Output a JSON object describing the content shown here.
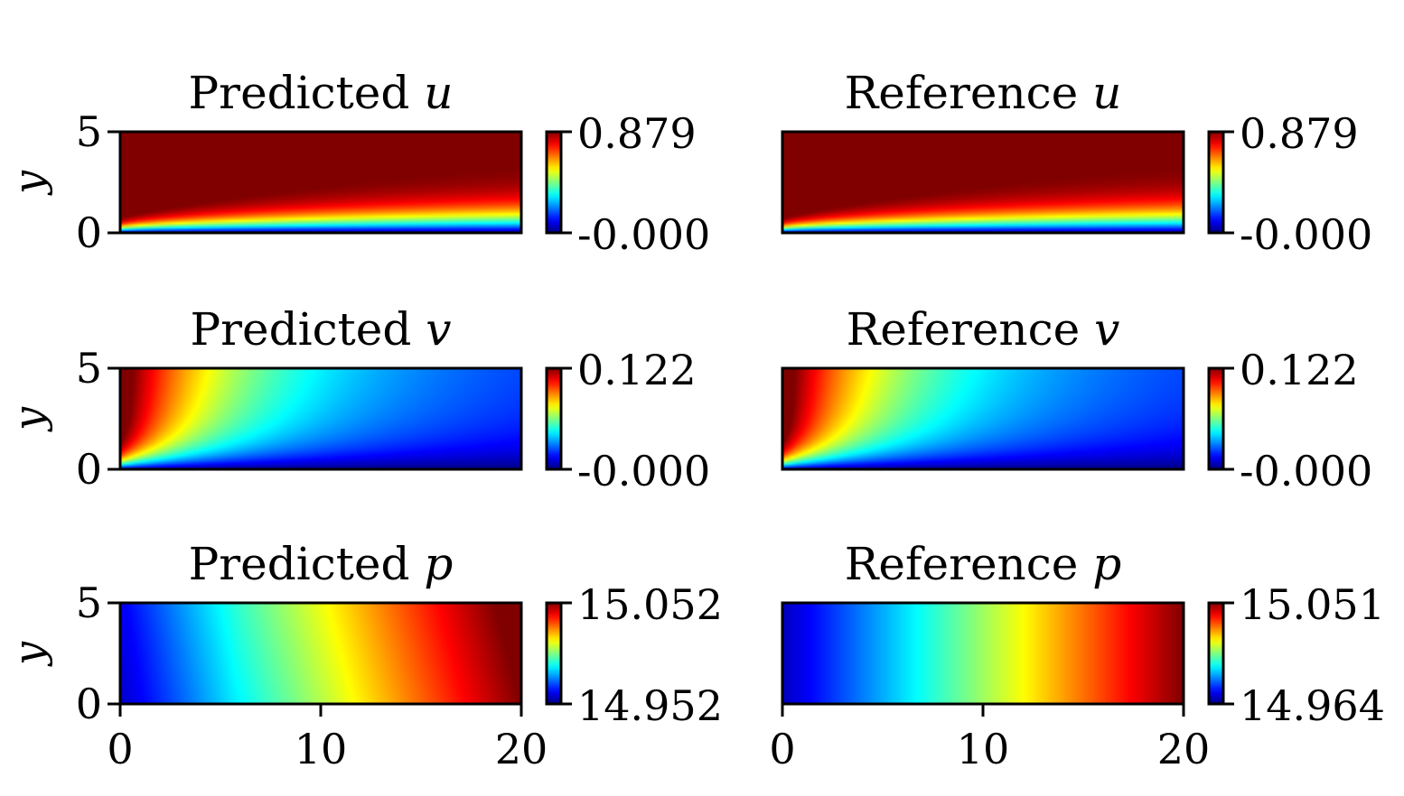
{
  "chart_data": [
    {
      "type": "heatmap",
      "title": "Predicted",
      "variable": "u",
      "ylabel": "y",
      "xlim": [
        0,
        20
      ],
      "ylim": [
        0,
        5
      ],
      "xticks": [
        "0",
        "10",
        "20"
      ],
      "yticks": [
        "0",
        "5"
      ],
      "colormap": "jet",
      "field": "boundary-layer",
      "colorbar": {
        "min_label": "-0.000",
        "max_label": "0.879",
        "min": -0.0,
        "max": 0.879
      }
    },
    {
      "type": "heatmap",
      "title": "Reference",
      "variable": "u",
      "ylabel": "",
      "xlim": [
        0,
        20
      ],
      "ylim": [
        0,
        5
      ],
      "xticks": [],
      "yticks": [],
      "colormap": "jet",
      "field": "boundary-layer",
      "colorbar": {
        "min_label": "-0.000",
        "max_label": "0.879",
        "min": -0.0,
        "max": 0.879
      }
    },
    {
      "type": "heatmap",
      "title": "Predicted",
      "variable": "v",
      "ylabel": "y",
      "xlim": [
        0,
        20
      ],
      "ylim": [
        0,
        5
      ],
      "xticks": [
        "0",
        "10",
        "20"
      ],
      "yticks": [
        "0",
        "5"
      ],
      "colormap": "jet",
      "field": "vertical-velocity",
      "colorbar": {
        "min_label": "-0.000",
        "max_label": "0.122",
        "min": -0.0,
        "max": 0.122
      }
    },
    {
      "type": "heatmap",
      "title": "Reference",
      "variable": "v",
      "ylabel": "",
      "xlim": [
        0,
        20
      ],
      "ylim": [
        0,
        5
      ],
      "xticks": [],
      "yticks": [],
      "colormap": "jet",
      "field": "vertical-velocity",
      "colorbar": {
        "min_label": "-0.000",
        "max_label": "0.122",
        "min": -0.0,
        "max": 0.122
      }
    },
    {
      "type": "heatmap",
      "title": "Predicted",
      "variable": "p",
      "ylabel": "y",
      "xlim": [
        0,
        20
      ],
      "ylim": [
        0,
        5
      ],
      "xticks": [
        "0",
        "10",
        "20"
      ],
      "yticks": [
        "0",
        "5"
      ],
      "colormap": "jet",
      "field": "pressure-curved",
      "colorbar": {
        "min_label": "14.952",
        "max_label": "15.052",
        "min": 14.952,
        "max": 15.052
      }
    },
    {
      "type": "heatmap",
      "title": "Reference",
      "variable": "p",
      "ylabel": "",
      "xlim": [
        0,
        20
      ],
      "ylim": [
        0,
        5
      ],
      "xticks": [
        "0",
        "10",
        "20"
      ],
      "yticks": [],
      "colormap": "jet",
      "field": "pressure-linear",
      "colorbar": {
        "min_label": "14.964",
        "max_label": "15.051",
        "min": 14.964,
        "max": 15.051
      }
    }
  ]
}
